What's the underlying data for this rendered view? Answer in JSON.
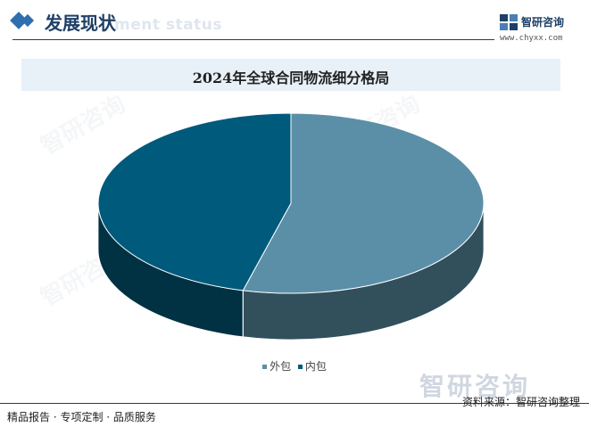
{
  "header": {
    "section_title": "发展现状",
    "section_ghost": "ment status",
    "brand_name": "智研咨询",
    "brand_url": "www.chyxx.com"
  },
  "chart_data": {
    "type": "pie",
    "title": "2024年全球合同物流细分格局",
    "categories": [
      "外包",
      "内包"
    ],
    "values": [
      54,
      46
    ],
    "colors": [
      "#5b8fa8",
      "#005a7c"
    ],
    "legend_position": "bottom"
  },
  "watermark": {
    "text": "智研咨询"
  },
  "footer": {
    "left": "精品报告 · 专项定制 · 品质服务",
    "right": "资料来源：智研咨询整理"
  }
}
